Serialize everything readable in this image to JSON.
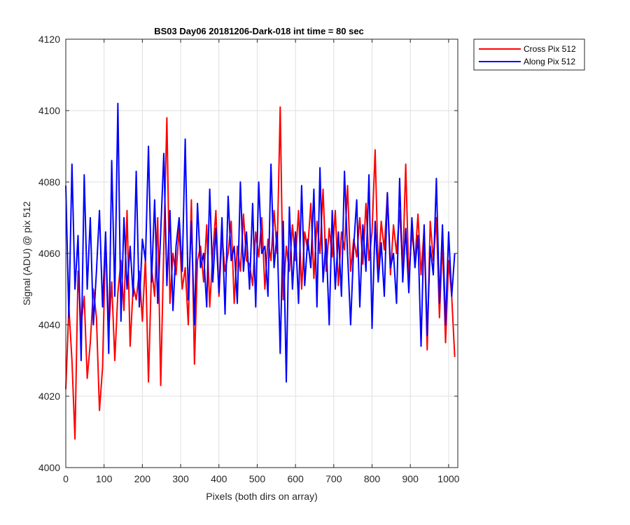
{
  "chart_data": {
    "type": "line",
    "title": "BS03 Day06 20181206-Dark-018 int time = 80 sec",
    "xlabel": "Pixels (both dirs on array)",
    "ylabel": "Signal (ADU) @ pix 512",
    "xlim": [
      0,
      1024
    ],
    "ylim": [
      4000,
      4120
    ],
    "xticks": [
      0,
      100,
      200,
      300,
      400,
      500,
      600,
      700,
      800,
      900,
      1000
    ],
    "yticks": [
      4000,
      4020,
      4040,
      4060,
      4080,
      4100,
      4120
    ],
    "grid": true,
    "legend_position": "outside-top-right",
    "series": [
      {
        "name": "Cross Pix 512",
        "color": "#ff0000",
        "x_start": 0,
        "x_step": 8,
        "values": [
          4022,
          4045,
          4030,
          4008,
          4055,
          4040,
          4048,
          4025,
          4035,
          4050,
          4042,
          4016,
          4028,
          4065,
          4038,
          4052,
          4030,
          4049,
          4058,
          4044,
          4072,
          4034,
          4051,
          4047,
          4055,
          4041,
          4059,
          4024,
          4056,
          4048,
          4070,
          4023,
          4062,
          4098,
          4046,
          4060,
          4054,
          4067,
          4050,
          4056,
          4040,
          4075,
          4029,
          4058,
          4062,
          4052,
          4068,
          4045,
          4060,
          4072,
          4048,
          4065,
          4055,
          4060,
          4069,
          4046,
          4062,
          4055,
          4071,
          4058,
          4057,
          4051,
          4066,
          4059,
          4070,
          4050,
          4064,
          4058,
          4072,
          4060,
          4101,
          4047,
          4062,
          4055,
          4068,
          4058,
          4072,
          4050,
          4066,
          4061,
          4074,
          4053,
          4069,
          4060,
          4078,
          4055,
          4067,
          4059,
          4072,
          4051,
          4066,
          4061,
          4079,
          4055,
          4064,
          4059,
          4070,
          4057,
          4074,
          4058,
          4066,
          4089,
          4055,
          4069,
          4061,
          4077,
          4054,
          4068,
          4060,
          4072,
          4056,
          4085,
          4053,
          4066,
          4058,
          4071,
          4054,
          4067,
          4033,
          4069,
          4058,
          4070,
          4042,
          4064,
          4035,
          4058,
          4048,
          4031
        ]
      },
      {
        "name": "Along Pix 512",
        "color": "#0000ff",
        "x_start": 0,
        "x_step": 8,
        "values": [
          4079,
          4042,
          4085,
          4050,
          4065,
          4030,
          4082,
          4050,
          4070,
          4040,
          4055,
          4072,
          4045,
          4066,
          4032,
          4086,
          4048,
          4102,
          4041,
          4070,
          4050,
          4062,
          4048,
          4083,
          4045,
          4064,
          4058,
          4090,
          4052,
          4075,
          4046,
          4066,
          4088,
          4051,
          4072,
          4044,
          4062,
          4070,
          4055,
          4092,
          4047,
          4069,
          4040,
          4074,
          4056,
          4060,
          4045,
          4078,
          4052,
          4067,
          4049,
          4070,
          4043,
          4076,
          4058,
          4062,
          4046,
          4080,
          4055,
          4066,
          4050,
          4074,
          4045,
          4080,
          4060,
          4062,
          4048,
          4085,
          4056,
          4066,
          4032,
          4069,
          4024,
          4073,
          4050,
          4066,
          4046,
          4079,
          4051,
          4064,
          4056,
          4078,
          4045,
          4084,
          4052,
          4064,
          4040,
          4072,
          4050,
          4066,
          4048,
          4083,
          4060,
          4040,
          4062,
          4075,
          4045,
          4068,
          4055,
          4082,
          4039,
          4069,
          4052,
          4063,
          4048,
          4077,
          4056,
          4060,
          4046,
          4081,
          4052,
          4067,
          4049,
          4070,
          4056,
          4065,
          4034,
          4068,
          4037,
          4062,
          4054,
          4081,
          4046,
          4068,
          4040,
          4066,
          4048,
          4060
        ]
      }
    ]
  }
}
